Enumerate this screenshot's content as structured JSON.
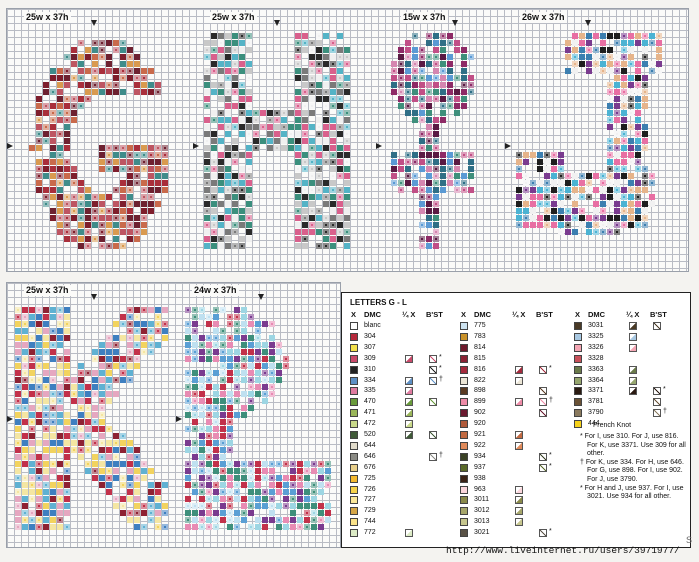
{
  "charts": [
    {
      "id": "G",
      "size": "25w x 37h",
      "palette": [
        "#a92f3b",
        "#7e1e2c",
        "#c96a4b",
        "#d99a4f",
        "#3f8c8a",
        "#6e2130",
        "#bd5562"
      ]
    },
    {
      "id": "H",
      "size": "25w x 37h",
      "palette": [
        "#f0f0f0",
        "#2a2a2a",
        "#7a7a7a",
        "#54b3c6",
        "#d9608c",
        "#c8c8c8",
        "#3b8f7d"
      ]
    },
    {
      "id": "I",
      "size": "15w x 37h",
      "palette": [
        "#8e2a66",
        "#c14f86",
        "#5a1a43",
        "#3e8f7b",
        "#5a9ad4",
        "#d586b0",
        "#2f6f86"
      ]
    },
    {
      "id": "J",
      "size": "26w x 37h",
      "palette": [
        "#4bb3d3",
        "#e86fa3",
        "#7a3b8f",
        "#f1f1f1",
        "#1e1e1e",
        "#e6b48a",
        "#3c7fb0"
      ]
    },
    {
      "id": "K",
      "size": "25w x 37h",
      "palette": [
        "#8e2233",
        "#f2d35e",
        "#5fb1d2",
        "#e5a7c0",
        "#3e7fc0",
        "#c2314a",
        "#f4e6a2"
      ]
    },
    {
      "id": "L",
      "size": "24w x 37h",
      "palette": [
        "#e88bb3",
        "#5a9fd4",
        "#3e8f7b",
        "#7a3b8f",
        "#bfe0f0",
        "#c2314a",
        "#9dd6e3"
      ]
    }
  ],
  "legend": {
    "title": "LETTERS G - L",
    "headers": {
      "x": "X",
      "dmc": "DMC",
      "quarter": "¼ X",
      "bst": "B'ST"
    },
    "columns": [
      [
        {
          "dmc": "blanc",
          "sym": "#ffffff",
          "q": false,
          "b": false
        },
        {
          "dmc": "304",
          "sym": "#b5283b",
          "q": false,
          "b": false
        },
        {
          "dmc": "307",
          "sym": "#f3e04a",
          "q": false,
          "b": false
        },
        {
          "dmc": "309",
          "sym": "#c94a6a",
          "q": true,
          "b": true,
          "star": "*"
        },
        {
          "dmc": "310",
          "sym": "#222222",
          "q": false,
          "b": true,
          "star": "*"
        },
        {
          "dmc": "334",
          "sym": "#5d8fc4",
          "q": true,
          "b": true,
          "star": "†"
        },
        {
          "dmc": "335",
          "sym": "#e07ba0",
          "q": true,
          "b": false
        },
        {
          "dmc": "470",
          "sym": "#6a9b3c",
          "q": true,
          "b": true
        },
        {
          "dmc": "471",
          "sym": "#9ab65a",
          "q": true,
          "b": false
        },
        {
          "dmc": "472",
          "sym": "#c9d98a",
          "q": true,
          "b": false
        },
        {
          "dmc": "520",
          "sym": "#3f5a37",
          "q": true,
          "b": true
        },
        {
          "dmc": "644",
          "sym": "#e2dccb",
          "q": false,
          "b": false
        },
        {
          "dmc": "646",
          "sym": "#8a8a84",
          "q": false,
          "b": true,
          "star": "†"
        },
        {
          "dmc": "676",
          "sym": "#e8cf8a",
          "q": false,
          "b": false
        },
        {
          "dmc": "725",
          "sym": "#f4b92f",
          "q": false,
          "b": false
        },
        {
          "dmc": "726",
          "sym": "#f7d34a",
          "q": false,
          "b": false
        },
        {
          "dmc": "727",
          "sym": "#fbe89a",
          "q": false,
          "b": false
        },
        {
          "dmc": "729",
          "sym": "#d6a748",
          "q": false,
          "b": false
        },
        {
          "dmc": "744",
          "sym": "#fbe38a",
          "q": false,
          "b": false
        },
        {
          "dmc": "772",
          "sym": "#dcebc6",
          "q": true,
          "b": false
        }
      ],
      [
        {
          "dmc": "775",
          "sym": "#cde3f0",
          "q": false,
          "b": false
        },
        {
          "dmc": "783",
          "sym": "#c9922a",
          "q": false,
          "b": false
        },
        {
          "dmc": "814",
          "sym": "#6e1a2c",
          "q": false,
          "b": false
        },
        {
          "dmc": "815",
          "sym": "#8a2234",
          "q": false,
          "b": false
        },
        {
          "dmc": "816",
          "sym": "#a42a3c",
          "q": true,
          "b": true,
          "star": "*"
        },
        {
          "dmc": "822",
          "sym": "#ece6d6",
          "q": true,
          "b": false
        },
        {
          "dmc": "898",
          "sym": "#5a3a22",
          "q": false,
          "b": true
        },
        {
          "dmc": "899",
          "sym": "#ee8ca8",
          "q": true,
          "b": true,
          "star": "†"
        },
        {
          "dmc": "902",
          "sym": "#6a1a30",
          "q": false,
          "b": true
        },
        {
          "dmc": "920",
          "sym": "#b05a3a",
          "q": false,
          "b": false
        },
        {
          "dmc": "921",
          "sym": "#c26a42",
          "q": true,
          "b": false
        },
        {
          "dmc": "922",
          "sym": "#e08a5a",
          "q": true,
          "b": false
        },
        {
          "dmc": "934",
          "sym": "#3a4226",
          "q": false,
          "b": true,
          "star": "*"
        },
        {
          "dmc": "937",
          "sym": "#5a6a2a",
          "q": false,
          "b": true,
          "star": "*"
        },
        {
          "dmc": "938",
          "sym": "#3a2216",
          "q": false,
          "b": false
        },
        {
          "dmc": "963",
          "sym": "#fbd6dc",
          "q": true,
          "b": false
        },
        {
          "dmc": "3011",
          "sym": "#8a8a4a",
          "q": true,
          "b": false
        },
        {
          "dmc": "3012",
          "sym": "#a6a66a",
          "q": true,
          "b": false
        },
        {
          "dmc": "3013",
          "sym": "#c6c68e",
          "q": true,
          "b": false
        },
        {
          "dmc": "3021",
          "sym": "#5a5246",
          "q": false,
          "b": true,
          "star": "*"
        }
      ],
      [
        {
          "dmc": "3031",
          "sym": "#4a3a26",
          "q": true,
          "b": true
        },
        {
          "dmc": "3325",
          "sym": "#a8c8e2",
          "q": true,
          "b": false
        },
        {
          "dmc": "3326",
          "sym": "#f5a6b4",
          "q": true,
          "b": false
        },
        {
          "dmc": "3328",
          "sym": "#c8505a",
          "q": false,
          "b": false
        },
        {
          "dmc": "3363",
          "sym": "#6a7a4a",
          "q": true,
          "b": false
        },
        {
          "dmc": "3364",
          "sym": "#96a66e",
          "q": true,
          "b": false
        },
        {
          "dmc": "3371",
          "sym": "#2a1a12",
          "q": true,
          "b": true,
          "star": "*"
        },
        {
          "dmc": "3781",
          "sym": "#6a5236",
          "q": false,
          "b": true
        },
        {
          "dmc": "3790",
          "sym": "#8a7a5e",
          "q": false,
          "b": true,
          "star": "†"
        },
        {
          "dmc": "444",
          "sym": "#f6d21a",
          "q": false,
          "b": false
        }
      ]
    ],
    "french_knot": "French Knot",
    "notes": [
      "* For I, use 310. For J, use 816. For K, use 3371. Use 309 for all other.",
      "† For K, use 334. For H, use 646. For G, use 898. For I, use 902. For J, use 3790.",
      "* For H and J, use 937. For I, use 3021. Use 934 for all other."
    ]
  },
  "watermark_url": "http://www.liveinternet.ru/users/3971977/",
  "corner_mark": "S"
}
